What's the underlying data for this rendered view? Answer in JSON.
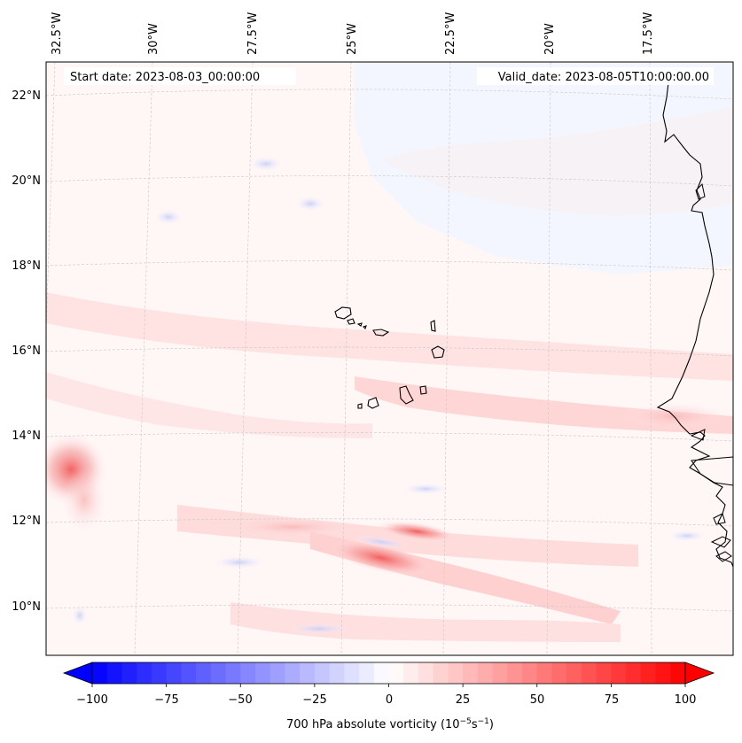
{
  "map": {
    "start_date": "Start date: 2023-08-03_00:00:00",
    "valid_date": "Valid_date: 2023-08-05T10:00:00.00",
    "lon_labels": [
      "32.5°W",
      "30°W",
      "27.5°W",
      "25°W",
      "22.5°W",
      "20°W",
      "17.5°W"
    ],
    "lat_labels": [
      "22°N",
      "20°N",
      "18°N",
      "16°N",
      "14°N",
      "12°N",
      "10°N"
    ]
  },
  "colorbar": {
    "title": "700 hPa absolute vorticity (10",
    "title_exp1": "−5",
    "title_mid": "s",
    "title_exp2": "−1",
    "title_end": ")",
    "tick_labels": [
      "−100",
      "−75",
      "−50",
      "−25",
      "0",
      "25",
      "50",
      "75",
      "100"
    ],
    "min": -100,
    "max": 100,
    "step": 5
  },
  "colors": {
    "negative": "#0000ff",
    "positive": "#ff0000",
    "coast": "#000000",
    "grid": "#c8c8c8"
  }
}
